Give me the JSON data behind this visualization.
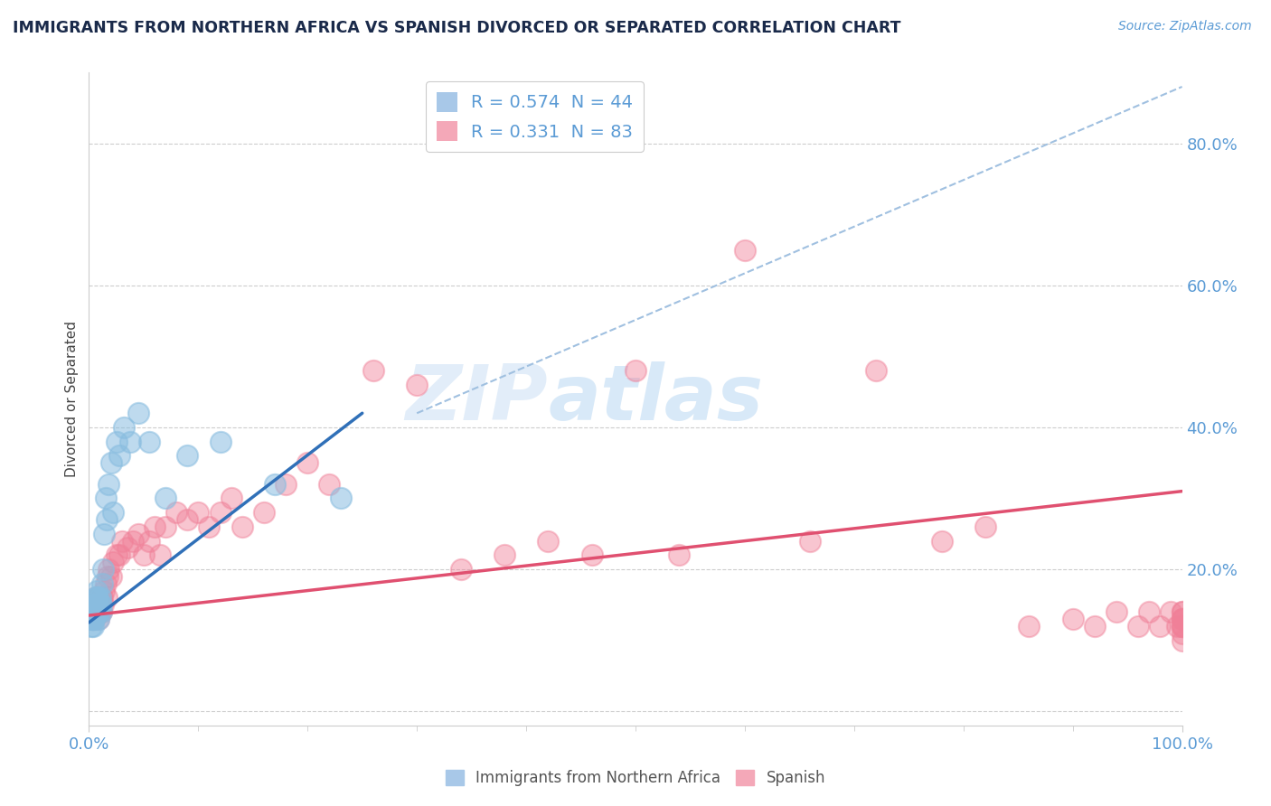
{
  "title": "IMMIGRANTS FROM NORTHERN AFRICA VS SPANISH DIVORCED OR SEPARATED CORRELATION CHART",
  "source_text": "Source: ZipAtlas.com",
  "ylabel": "Divorced or Separated",
  "xlim": [
    0.0,
    1.0
  ],
  "ylim": [
    -0.02,
    0.9
  ],
  "yticks": [
    0.0,
    0.2,
    0.4,
    0.6,
    0.8
  ],
  "ytick_labels": [
    "",
    "20.0%",
    "40.0%",
    "60.0%",
    "80.0%"
  ],
  "xtick_labels": [
    "0.0%",
    "100.0%"
  ],
  "legend_R1": "R = 0.574",
  "legend_N1": "N = 44",
  "legend_R2": "R = 0.331",
  "legend_N2": "N = 83",
  "blue_scatter_x": [
    0.002,
    0.002,
    0.003,
    0.003,
    0.004,
    0.004,
    0.004,
    0.005,
    0.005,
    0.005,
    0.006,
    0.006,
    0.006,
    0.007,
    0.007,
    0.007,
    0.008,
    0.008,
    0.008,
    0.009,
    0.009,
    0.01,
    0.01,
    0.011,
    0.011,
    0.012,
    0.013,
    0.014,
    0.015,
    0.016,
    0.018,
    0.02,
    0.022,
    0.025,
    0.028,
    0.032,
    0.038,
    0.045,
    0.055,
    0.07,
    0.09,
    0.12,
    0.17,
    0.23
  ],
  "blue_scatter_y": [
    0.13,
    0.12,
    0.14,
    0.13,
    0.14,
    0.13,
    0.12,
    0.15,
    0.14,
    0.13,
    0.16,
    0.15,
    0.14,
    0.17,
    0.16,
    0.15,
    0.14,
    0.15,
    0.16,
    0.13,
    0.14,
    0.15,
    0.16,
    0.14,
    0.15,
    0.18,
    0.2,
    0.25,
    0.3,
    0.27,
    0.32,
    0.35,
    0.28,
    0.38,
    0.36,
    0.4,
    0.38,
    0.42,
    0.38,
    0.3,
    0.36,
    0.38,
    0.32,
    0.3
  ],
  "pink_scatter_x": [
    0.001,
    0.002,
    0.003,
    0.003,
    0.004,
    0.004,
    0.005,
    0.005,
    0.006,
    0.006,
    0.007,
    0.007,
    0.008,
    0.008,
    0.009,
    0.009,
    0.01,
    0.01,
    0.011,
    0.011,
    0.012,
    0.013,
    0.014,
    0.015,
    0.016,
    0.017,
    0.018,
    0.02,
    0.022,
    0.025,
    0.028,
    0.03,
    0.035,
    0.04,
    0.045,
    0.05,
    0.055,
    0.06,
    0.065,
    0.07,
    0.08,
    0.09,
    0.1,
    0.11,
    0.12,
    0.13,
    0.14,
    0.16,
    0.18,
    0.2,
    0.22,
    0.26,
    0.3,
    0.34,
    0.38,
    0.42,
    0.46,
    0.5,
    0.54,
    0.6,
    0.66,
    0.72,
    0.78,
    0.82,
    0.86,
    0.9,
    0.92,
    0.94,
    0.96,
    0.97,
    0.98,
    0.99,
    0.995,
    1.0,
    1.0,
    1.0,
    1.0,
    1.0,
    1.0,
    1.0,
    1.0,
    1.0,
    1.0
  ],
  "pink_scatter_y": [
    0.14,
    0.14,
    0.13,
    0.15,
    0.14,
    0.15,
    0.13,
    0.14,
    0.15,
    0.16,
    0.14,
    0.15,
    0.16,
    0.14,
    0.15,
    0.13,
    0.14,
    0.15,
    0.16,
    0.14,
    0.16,
    0.15,
    0.17,
    0.18,
    0.16,
    0.19,
    0.2,
    0.19,
    0.21,
    0.22,
    0.22,
    0.24,
    0.23,
    0.24,
    0.25,
    0.22,
    0.24,
    0.26,
    0.22,
    0.26,
    0.28,
    0.27,
    0.28,
    0.26,
    0.28,
    0.3,
    0.26,
    0.28,
    0.32,
    0.35,
    0.32,
    0.48,
    0.46,
    0.2,
    0.22,
    0.24,
    0.22,
    0.48,
    0.22,
    0.65,
    0.24,
    0.48,
    0.24,
    0.26,
    0.12,
    0.13,
    0.12,
    0.14,
    0.12,
    0.14,
    0.12,
    0.14,
    0.12,
    0.14,
    0.13,
    0.12,
    0.14,
    0.13,
    0.12,
    0.11,
    0.13,
    0.12,
    0.1
  ],
  "blue_line_x": [
    0.0,
    0.25
  ],
  "blue_line_y": [
    0.125,
    0.42
  ],
  "pink_line_x": [
    0.0,
    1.0
  ],
  "pink_line_y": [
    0.135,
    0.31
  ],
  "dashed_line_x": [
    0.3,
    1.0
  ],
  "dashed_line_y": [
    0.42,
    0.88
  ],
  "blue_color": "#89bde0",
  "pink_color": "#f08098",
  "blue_line_color": "#3070b8",
  "pink_line_color": "#e05070",
  "dashed_line_color": "#a0c0e0",
  "watermark_zip": "ZIP",
  "watermark_atlas": "atlas",
  "background_color": "#ffffff",
  "grid_color": "#c8c8c8",
  "title_color": "#1a2a4a",
  "source_color": "#5b9bd5",
  "axis_label_color": "#5b9bd5",
  "ylabel_color": "#444444"
}
